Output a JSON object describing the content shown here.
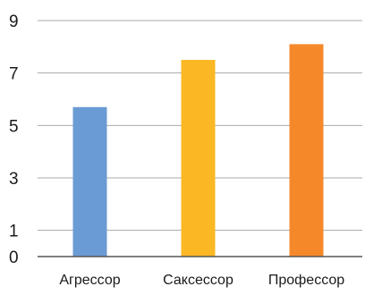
{
  "chart_data": {
    "type": "bar",
    "title": "",
    "xlabel": "",
    "ylabel": "",
    "categories": [
      "Агрессор",
      "Саксессор",
      "Профессор"
    ],
    "values": [
      5.7,
      7.5,
      8.1
    ],
    "colors": [
      "#6a9bd4",
      "#fbb724",
      "#f5892a"
    ],
    "ylim": [
      0,
      9
    ],
    "yticks": [
      "0",
      "1",
      "3",
      "5",
      "7",
      "9"
    ],
    "ytick_values": [
      0,
      1,
      3,
      5,
      7,
      9
    ],
    "grid": true,
    "legend": "none"
  }
}
